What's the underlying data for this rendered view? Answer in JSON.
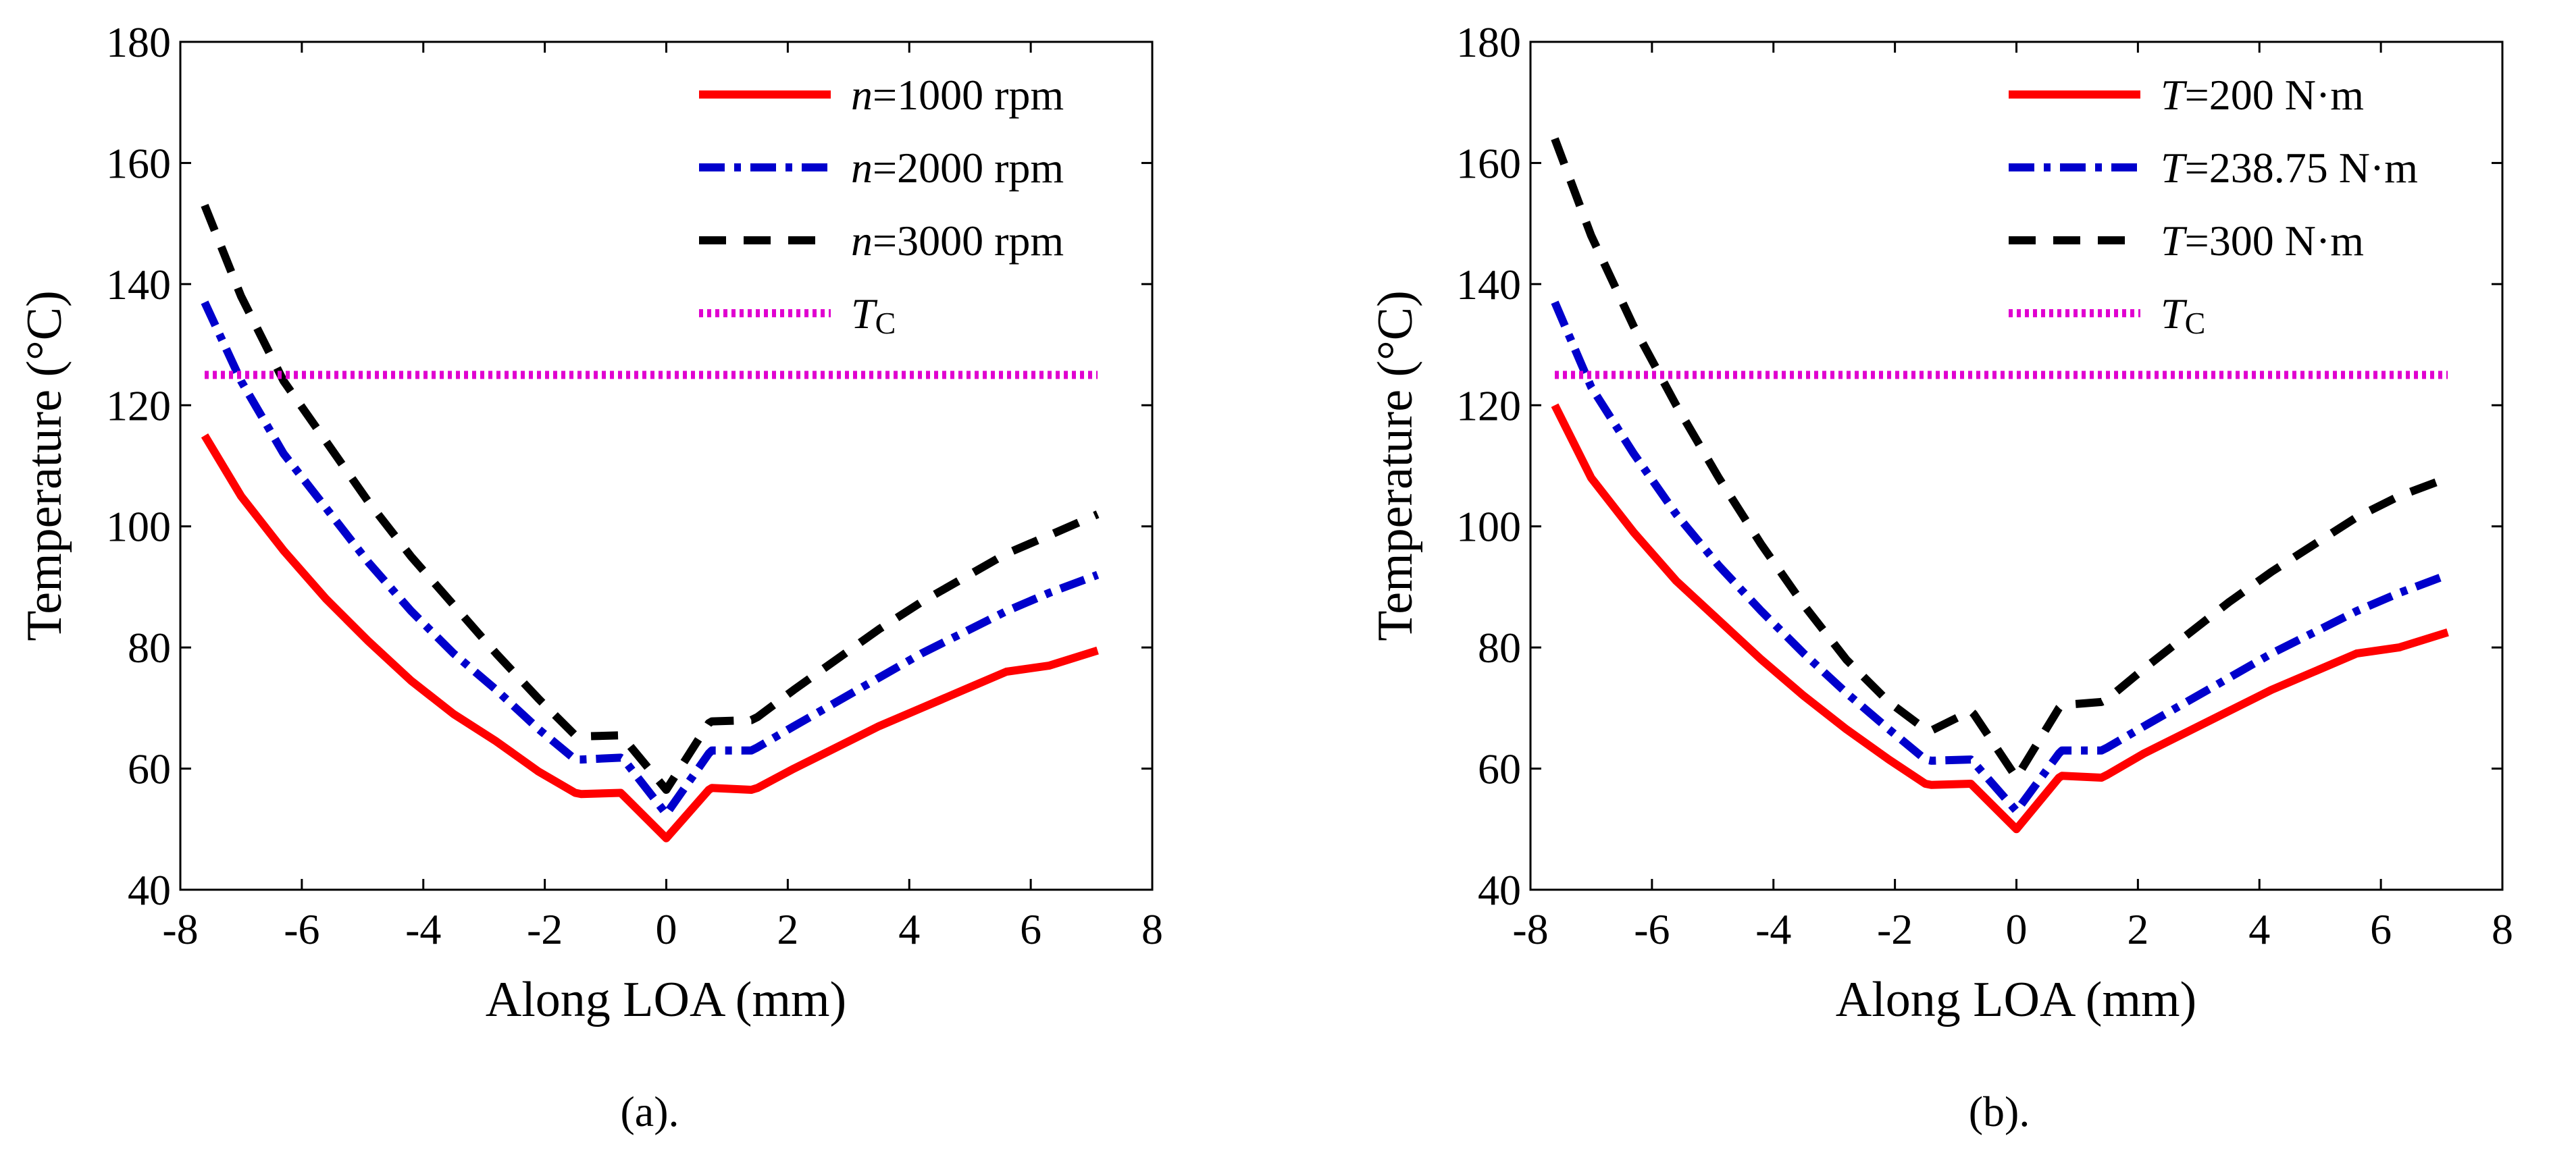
{
  "chart_data": [
    {
      "type": "line",
      "caption": "(a).",
      "xlabel": "Along LOA (mm)",
      "ylabel": "Temperature (°C)",
      "xlim": [
        -8,
        8
      ],
      "ylim": [
        40,
        180
      ],
      "xticks": [
        -8,
        -6,
        -4,
        -2,
        0,
        2,
        4,
        6,
        8
      ],
      "yticks": [
        40,
        60,
        80,
        100,
        120,
        140,
        160,
        180
      ],
      "legend_position": "top-right",
      "series": [
        {
          "name_italic": "n",
          "name_rest": "=1000 rpm",
          "color": "#ff0000",
          "style": "solid",
          "x": [
            -7.6,
            -7,
            -6.3,
            -5.6,
            -4.9,
            -4.2,
            -3.5,
            -2.8,
            -2.1,
            -1.5,
            -1.4,
            -0.75,
            -0.7,
            0,
            0.7,
            0.75,
            1.4,
            1.5,
            2.1,
            2.8,
            3.5,
            4.2,
            4.9,
            5.6,
            6.3,
            7.1
          ],
          "y": [
            115,
            105,
            96,
            88,
            81,
            74.5,
            69,
            64.5,
            59.5,
            56,
            55.8,
            56,
            55.5,
            48.5,
            56.5,
            56.8,
            56.5,
            56.8,
            60,
            63.5,
            67,
            70,
            73,
            76,
            77,
            79.5
          ]
        },
        {
          "name_italic": "n",
          "name_rest": "=2000 rpm",
          "color": "#0000cc",
          "style": "dashdot",
          "x": [
            -7.6,
            -7,
            -6.3,
            -5.6,
            -4.9,
            -4.2,
            -3.5,
            -2.8,
            -2.1,
            -1.5,
            -1.4,
            -0.75,
            -0.7,
            0,
            0.7,
            0.75,
            1.4,
            1.5,
            2.1,
            2.8,
            3.5,
            4.2,
            4.9,
            5.6,
            6.3,
            7.1
          ],
          "y": [
            137,
            124,
            112,
            103,
            94,
            86,
            79,
            73,
            66.5,
            61.5,
            61.5,
            61.8,
            61.5,
            52.5,
            62.5,
            63,
            63,
            63.5,
            67,
            71,
            75,
            79,
            82.5,
            86,
            89,
            92
          ]
        },
        {
          "name_italic": "n",
          "name_rest": "=3000 rpm",
          "color": "#000000",
          "style": "dashed",
          "x": [
            -7.6,
            -7,
            -6.3,
            -5.6,
            -4.9,
            -4.2,
            -3.5,
            -2.8,
            -2.1,
            -1.5,
            -1.4,
            -0.75,
            -0.7,
            0,
            0.7,
            0.75,
            1.4,
            1.5,
            2.1,
            2.8,
            3.5,
            4.2,
            4.9,
            5.6,
            6.3,
            7.1
          ],
          "y": [
            153,
            138,
            124,
            114,
            104,
            95,
            87,
            79,
            71.5,
            65.5,
            65.3,
            65.5,
            65,
            56.5,
            67.5,
            67.8,
            68,
            68.5,
            73,
            78,
            83,
            87.5,
            91.5,
            95.5,
            98.5,
            102
          ]
        },
        {
          "name_italic": "T",
          "name_rest": "C",
          "subscript": true,
          "color": "#e000d0",
          "style": "dotted",
          "x": [
            -7.6,
            7.1
          ],
          "y": [
            125,
            125
          ]
        }
      ]
    },
    {
      "type": "line",
      "caption": "(b).",
      "xlabel": "Along LOA (mm)",
      "ylabel": "Temperature (°C)",
      "xlim": [
        -8,
        8
      ],
      "ylim": [
        40,
        180
      ],
      "xticks": [
        -8,
        -6,
        -4,
        -2,
        0,
        2,
        4,
        6,
        8
      ],
      "yticks": [
        40,
        60,
        80,
        100,
        120,
        140,
        160,
        180
      ],
      "legend_position": "top-right",
      "series": [
        {
          "name_italic": "T",
          "name_rest": "=200 N·m",
          "color": "#ff0000",
          "style": "solid",
          "x": [
            -7.6,
            -7,
            -6.3,
            -5.6,
            -4.9,
            -4.2,
            -3.5,
            -2.8,
            -2.1,
            -1.5,
            -1.4,
            -0.75,
            -0.7,
            0,
            0.7,
            0.75,
            1.4,
            1.5,
            2.1,
            2.8,
            3.5,
            4.2,
            4.9,
            5.6,
            6.3,
            7.1
          ],
          "y": [
            120,
            108,
            99,
            91,
            84.5,
            78,
            72,
            66.5,
            61.5,
            57.5,
            57.3,
            57.5,
            57,
            50,
            58.5,
            58.8,
            58.5,
            59,
            62.5,
            66,
            69.5,
            73,
            76,
            79,
            80,
            82.5
          ]
        },
        {
          "name_italic": "T",
          "name_rest": "=238.75 N·m",
          "color": "#0000cc",
          "style": "dashdot",
          "x": [
            -7.6,
            -7,
            -6.3,
            -5.6,
            -4.9,
            -4.2,
            -3.5,
            -2.8,
            -2.1,
            -1.5,
            -1.4,
            -0.75,
            -0.7,
            0,
            0.7,
            0.75,
            1.4,
            1.5,
            2.1,
            2.8,
            3.5,
            4.2,
            4.9,
            5.6,
            6.3,
            7.1
          ],
          "y": [
            137,
            123,
            112,
            102,
            93.5,
            86,
            79,
            72.5,
            66.5,
            61.5,
            61.3,
            61.5,
            61,
            53,
            62.5,
            63,
            63,
            63.5,
            67,
            71,
            75,
            79,
            82.5,
            86,
            89,
            92
          ]
        },
        {
          "name_italic": "T",
          "name_rest": "=300 N·m",
          "color": "#000000",
          "style": "dashed",
          "x": [
            -7.6,
            -7,
            -6.3,
            -5.6,
            -4.9,
            -4.2,
            -3.5,
            -2.8,
            -2.1,
            -1.5,
            -1.4,
            -0.75,
            -0.7,
            0,
            0.7,
            0.75,
            1.4,
            1.5,
            2.1,
            2.8,
            3.5,
            4.2,
            4.9,
            5.6,
            6.3,
            7.1
          ],
          "y": [
            164,
            148,
            133,
            120,
            108,
            97,
            87,
            78,
            71,
            66.5,
            66.3,
            69.5,
            69,
            58.5,
            70,
            70.5,
            71,
            71.5,
            76.5,
            82,
            87.5,
            92.5,
            97,
            101.5,
            105,
            108
          ]
        },
        {
          "name_italic": "T",
          "name_rest": "C",
          "subscript": true,
          "color": "#e000d0",
          "style": "dotted",
          "x": [
            -7.6,
            7.1
          ],
          "y": [
            125,
            125
          ]
        }
      ]
    }
  ]
}
